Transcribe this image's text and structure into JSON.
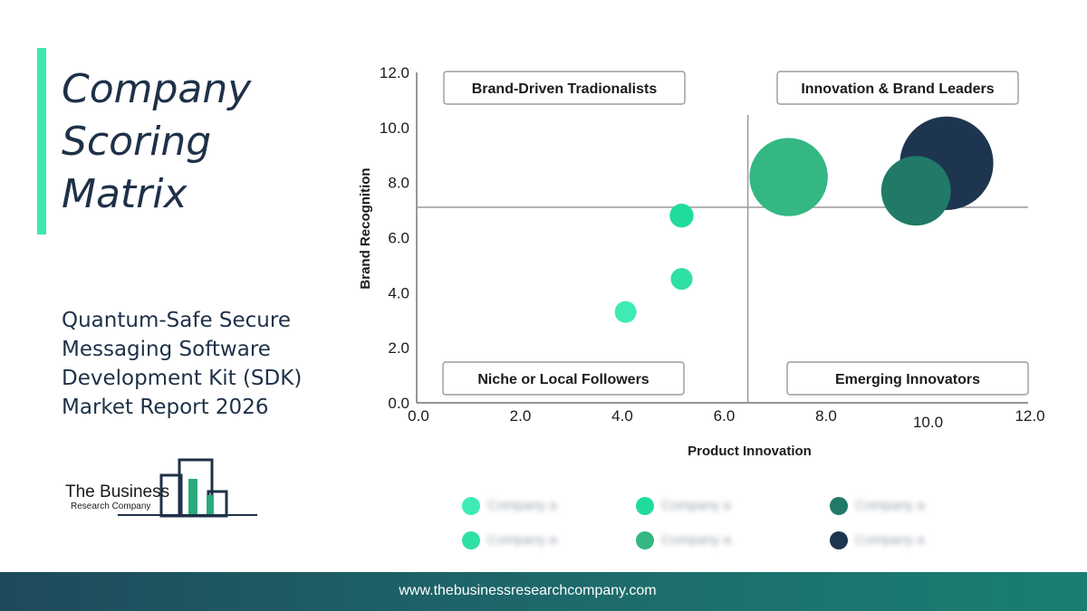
{
  "title": {
    "lines": [
      "Company",
      "Scoring",
      "Matrix"
    ],
    "accent_color": "#3ee6ad",
    "color": "#1e3148"
  },
  "subtitle": {
    "lines": [
      "Quantum-Safe Secure",
      "Messaging Software",
      "Development Kit (SDK)",
      "Market Report 2026"
    ]
  },
  "logo": {
    "name": "The Business",
    "sub": "Research Company",
    "bar_color": "#2aaa7a"
  },
  "chart_data": {
    "type": "scatter",
    "xlabel": "Product Innovation",
    "ylabel": "Brand Recognition",
    "xlim": [
      0,
      12
    ],
    "ylim": [
      0,
      12
    ],
    "x_ticks": [
      {
        "value": 0,
        "label": "0.0"
      },
      {
        "value": 2,
        "label": "2.0"
      },
      {
        "value": 4,
        "label": "4.0"
      },
      {
        "value": 6,
        "label": "6.0"
      },
      {
        "value": 8,
        "label": "8.0"
      },
      {
        "value": 10,
        "label": "10.0"
      },
      {
        "value": 12,
        "label": "12.0"
      }
    ],
    "y_ticks": [
      {
        "value": 0,
        "label": "0.0"
      },
      {
        "value": 2,
        "label": "2.0"
      },
      {
        "value": 4,
        "label": "4.0"
      },
      {
        "value": 6,
        "label": "6.0"
      },
      {
        "value": 8,
        "label": "8.0"
      },
      {
        "value": 10,
        "label": "10.0"
      },
      {
        "value": 12,
        "label": "12.0"
      }
    ],
    "divider_x": 6.5,
    "divider_y": 7.1,
    "quadrants": [
      {
        "label": "Brand-Driven Tradionalists",
        "position": "top-left"
      },
      {
        "label": "Innovation & Brand Leaders",
        "position": "top-right"
      },
      {
        "label": "Niche or Local Followers",
        "position": "bottom-left"
      },
      {
        "label": "Emerging Innovators",
        "position": "bottom-right"
      }
    ],
    "points": [
      {
        "x": 4.1,
        "y": 3.3,
        "size": 1.0,
        "color": "#3eebb5"
      },
      {
        "x": 5.2,
        "y": 4.5,
        "size": 1.0,
        "color": "#2ee0a6"
      },
      {
        "x": 5.2,
        "y": 6.8,
        "size": 1.1,
        "color": "#1fdc9e"
      },
      {
        "x": 7.3,
        "y": 8.2,
        "size": 3.6,
        "color": "#34b782"
      },
      {
        "x": 10.4,
        "y": 8.7,
        "size": 4.3,
        "color": "#1e3550"
      },
      {
        "x": 9.8,
        "y": 7.7,
        "size": 3.2,
        "color": "#207a67"
      }
    ],
    "legend": [
      {
        "label": "Company a",
        "color": "#3eebb5"
      },
      {
        "label": "Company a",
        "color": "#1fdc9e"
      },
      {
        "label": "Company a",
        "color": "#207a67"
      },
      {
        "label": "Company a",
        "color": "#2ee0a6"
      },
      {
        "label": "Company a",
        "color": "#34b782"
      },
      {
        "label": "Company a",
        "color": "#1e3550"
      }
    ]
  },
  "footer": {
    "url": "www.thebusinessresearchcompany.com"
  }
}
